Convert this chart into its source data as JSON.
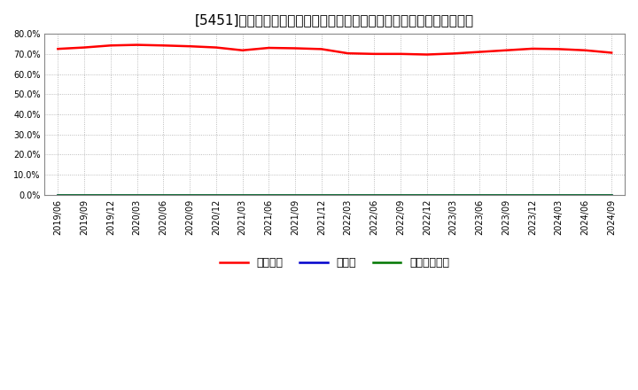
{
  "title": "[5451]　自己資本、のれん、繰延税金資産の総資産に対する比率の推移",
  "x_labels": [
    "2019/06",
    "2019/09",
    "2019/12",
    "2020/03",
    "2020/06",
    "2020/09",
    "2020/12",
    "2021/03",
    "2021/06",
    "2021/09",
    "2021/12",
    "2022/03",
    "2022/06",
    "2022/09",
    "2022/12",
    "2023/03",
    "2023/06",
    "2023/09",
    "2023/12",
    "2024/03",
    "2024/06",
    "2024/09"
  ],
  "equity_ratio": [
    0.725,
    0.732,
    0.742,
    0.745,
    0.742,
    0.738,
    0.732,
    0.718,
    0.73,
    0.728,
    0.724,
    0.703,
    0.7,
    0.7,
    0.697,
    0.702,
    0.71,
    0.718,
    0.726,
    0.724,
    0.718,
    0.706
  ],
  "noren_ratio": [
    0.0,
    0.0,
    0.0,
    0.0,
    0.0,
    0.0,
    0.0,
    0.0,
    0.0,
    0.0,
    0.0,
    0.0,
    0.0,
    0.0,
    0.0,
    0.0,
    0.0,
    0.0,
    0.0,
    0.0,
    0.0,
    0.0
  ],
  "deferred_tax_ratio": [
    0.0,
    0.0,
    0.0,
    0.0,
    0.0,
    0.0,
    0.0,
    0.0,
    0.0,
    0.0,
    0.0,
    0.0,
    0.0,
    0.0,
    0.0,
    0.0,
    0.0,
    0.0,
    0.0,
    0.0,
    0.0,
    0.0
  ],
  "equity_color": "#ff0000",
  "noren_color": "#0000cc",
  "deferred_tax_color": "#007700",
  "fig_bg_color": "#ffffff",
  "plot_bg_color": "#ffffff",
  "grid_color": "#aaaaaa",
  "ylim": [
    0.0,
    0.8
  ],
  "yticks": [
    0.0,
    0.1,
    0.2,
    0.3,
    0.4,
    0.5,
    0.6,
    0.7,
    0.8
  ],
  "legend_labels": [
    "自己資本",
    "のれん",
    "繰延税金資産"
  ],
  "title_fontsize": 11,
  "tick_fontsize": 7,
  "legend_fontsize": 9,
  "line_width": 1.8
}
